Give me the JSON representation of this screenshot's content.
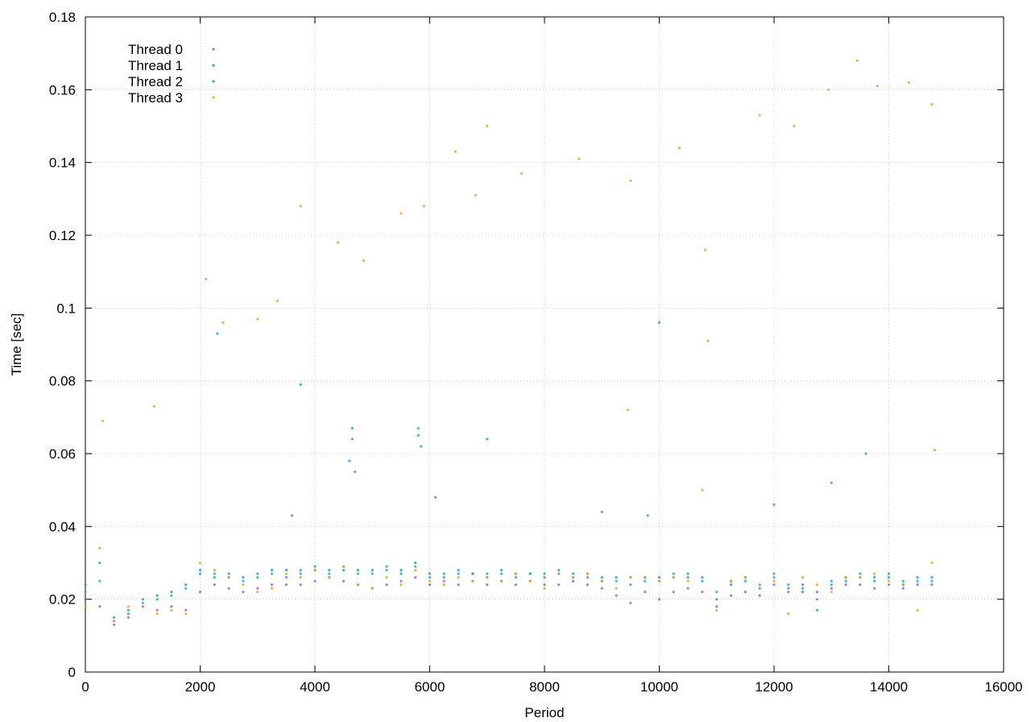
{
  "chart_data": {
    "type": "scatter",
    "title": "",
    "xlabel": "Period",
    "ylabel": "Time [sec]",
    "xlim": [
      0,
      16000
    ],
    "ylim": [
      0,
      0.18
    ],
    "xticks": [
      0,
      2000,
      4000,
      6000,
      8000,
      10000,
      12000,
      14000,
      16000
    ],
    "yticks": [
      0,
      0.02,
      0.04,
      0.06,
      0.08,
      0.1,
      0.12,
      0.14,
      0.16,
      0.18
    ],
    "xtick_labels": [
      "0",
      "2000",
      "4000",
      "6000",
      "8000",
      "10000",
      "12000",
      "14000",
      "16000"
    ],
    "ytick_labels": [
      "0",
      "0.02",
      "0.04",
      "0.06",
      "0.08",
      "0.1",
      "0.12",
      "0.14",
      "0.16",
      "0.18"
    ],
    "grid": true,
    "legend_position": "top-left",
    "series": [
      {
        "name": "Thread 0",
        "color": "#9b59d0",
        "points": [
          [
            0,
            0.02
          ],
          [
            250,
            0.018
          ],
          [
            500,
            0.013
          ],
          [
            750,
            0.015
          ],
          [
            1000,
            0.018
          ],
          [
            1250,
            0.017
          ],
          [
            1500,
            0.018
          ],
          [
            1750,
            0.017
          ],
          [
            2000,
            0.022
          ],
          [
            2250,
            0.024
          ],
          [
            2500,
            0.023
          ],
          [
            2750,
            0.022
          ],
          [
            3000,
            0.023
          ],
          [
            3250,
            0.024
          ],
          [
            3500,
            0.024
          ],
          [
            3750,
            0.024
          ],
          [
            4000,
            0.025
          ],
          [
            4250,
            0.026
          ],
          [
            4500,
            0.025
          ],
          [
            4750,
            0.024
          ],
          [
            5000,
            0.023
          ],
          [
            5250,
            0.024
          ],
          [
            5500,
            0.025
          ],
          [
            5750,
            0.026
          ],
          [
            6000,
            0.024
          ],
          [
            6250,
            0.025
          ],
          [
            6500,
            0.024
          ],
          [
            6750,
            0.025
          ],
          [
            7000,
            0.024
          ],
          [
            7250,
            0.025
          ],
          [
            7500,
            0.024
          ],
          [
            7750,
            0.025
          ],
          [
            8000,
            0.024
          ],
          [
            8250,
            0.024
          ],
          [
            8500,
            0.025
          ],
          [
            8750,
            0.024
          ],
          [
            9000,
            0.023
          ],
          [
            9250,
            0.021
          ],
          [
            9500,
            0.019
          ],
          [
            9750,
            0.022
          ],
          [
            10000,
            0.02
          ],
          [
            10250,
            0.022
          ],
          [
            10500,
            0.023
          ],
          [
            10750,
            0.022
          ],
          [
            11000,
            0.018
          ],
          [
            11250,
            0.021
          ],
          [
            11500,
            0.022
          ],
          [
            11750,
            0.021
          ],
          [
            12000,
            0.024
          ],
          [
            12250,
            0.022
          ],
          [
            12500,
            0.024
          ],
          [
            12750,
            0.022
          ],
          [
            13000,
            0.023
          ],
          [
            13250,
            0.024
          ],
          [
            13500,
            0.024
          ],
          [
            13750,
            0.023
          ],
          [
            14000,
            0.024
          ],
          [
            14250,
            0.023
          ],
          [
            14500,
            0.024
          ],
          [
            14750,
            0.024
          ],
          [
            4650,
            0.064
          ],
          [
            4700,
            0.055
          ],
          [
            6100,
            0.048
          ],
          [
            9000,
            0.044
          ],
          [
            12000,
            0.046
          ],
          [
            3600,
            0.043
          ]
        ]
      },
      {
        "name": "Thread 1",
        "color": "#1f9fd8",
        "points": [
          [
            0,
            0.022
          ],
          [
            250,
            0.025
          ],
          [
            500,
            0.014
          ],
          [
            750,
            0.016
          ],
          [
            1000,
            0.019
          ],
          [
            1250,
            0.02
          ],
          [
            1500,
            0.021
          ],
          [
            1750,
            0.023
          ],
          [
            2000,
            0.027
          ],
          [
            2250,
            0.026
          ],
          [
            2500,
            0.026
          ],
          [
            2750,
            0.025
          ],
          [
            3000,
            0.026
          ],
          [
            3250,
            0.027
          ],
          [
            3500,
            0.026
          ],
          [
            3750,
            0.027
          ],
          [
            4000,
            0.028
          ],
          [
            4250,
            0.027
          ],
          [
            4500,
            0.028
          ],
          [
            4750,
            0.027
          ],
          [
            5000,
            0.027
          ],
          [
            5250,
            0.028
          ],
          [
            5500,
            0.027
          ],
          [
            5750,
            0.029
          ],
          [
            6000,
            0.026
          ],
          [
            6250,
            0.026
          ],
          [
            6500,
            0.027
          ],
          [
            6750,
            0.027
          ],
          [
            7000,
            0.026
          ],
          [
            7250,
            0.027
          ],
          [
            7500,
            0.026
          ],
          [
            7750,
            0.027
          ],
          [
            8000,
            0.026
          ],
          [
            8250,
            0.027
          ],
          [
            8500,
            0.026
          ],
          [
            8750,
            0.026
          ],
          [
            9000,
            0.025
          ],
          [
            9250,
            0.025
          ],
          [
            9500,
            0.024
          ],
          [
            9750,
            0.025
          ],
          [
            10000,
            0.025
          ],
          [
            10250,
            0.026
          ],
          [
            10500,
            0.026
          ],
          [
            10750,
            0.025
          ],
          [
            11000,
            0.022
          ],
          [
            11250,
            0.024
          ],
          [
            11500,
            0.025
          ],
          [
            11750,
            0.024
          ],
          [
            12000,
            0.026
          ],
          [
            12250,
            0.024
          ],
          [
            12500,
            0.023
          ],
          [
            12750,
            0.02
          ],
          [
            13000,
            0.024
          ],
          [
            13250,
            0.025
          ],
          [
            13500,
            0.026
          ],
          [
            13750,
            0.025
          ],
          [
            14000,
            0.026
          ],
          [
            14250,
            0.024
          ],
          [
            14500,
            0.025
          ],
          [
            14750,
            0.025
          ],
          [
            2300,
            0.093
          ],
          [
            5850,
            0.062
          ],
          [
            5800,
            0.067
          ],
          [
            4600,
            0.058
          ],
          [
            9800,
            0.043
          ],
          [
            13000,
            0.052
          ]
        ]
      },
      {
        "name": "Thread 2",
        "color": "#18a3a8",
        "points": [
          [
            0,
            0.024
          ],
          [
            250,
            0.03
          ],
          [
            500,
            0.015
          ],
          [
            750,
            0.017
          ],
          [
            1000,
            0.02
          ],
          [
            1250,
            0.021
          ],
          [
            1500,
            0.022
          ],
          [
            1750,
            0.024
          ],
          [
            2000,
            0.028
          ],
          [
            2250,
            0.027
          ],
          [
            2500,
            0.027
          ],
          [
            2750,
            0.026
          ],
          [
            3000,
            0.027
          ],
          [
            3250,
            0.028
          ],
          [
            3500,
            0.028
          ],
          [
            3750,
            0.028
          ],
          [
            4000,
            0.029
          ],
          [
            4250,
            0.028
          ],
          [
            4500,
            0.029
          ],
          [
            4750,
            0.028
          ],
          [
            5000,
            0.028
          ],
          [
            5250,
            0.029
          ],
          [
            5500,
            0.028
          ],
          [
            5750,
            0.03
          ],
          [
            6000,
            0.027
          ],
          [
            6250,
            0.027
          ],
          [
            6500,
            0.028
          ],
          [
            6750,
            0.027
          ],
          [
            7000,
            0.027
          ],
          [
            7250,
            0.028
          ],
          [
            7500,
            0.027
          ],
          [
            7750,
            0.027
          ],
          [
            8000,
            0.027
          ],
          [
            8250,
            0.028
          ],
          [
            8500,
            0.027
          ],
          [
            8750,
            0.027
          ],
          [
            9000,
            0.026
          ],
          [
            9250,
            0.026
          ],
          [
            9500,
            0.026
          ],
          [
            9750,
            0.026
          ],
          [
            10000,
            0.026
          ],
          [
            10250,
            0.027
          ],
          [
            10500,
            0.027
          ],
          [
            10750,
            0.026
          ],
          [
            11000,
            0.02
          ],
          [
            11250,
            0.025
          ],
          [
            11500,
            0.026
          ],
          [
            11750,
            0.023
          ],
          [
            12000,
            0.027
          ],
          [
            12250,
            0.023
          ],
          [
            12500,
            0.022
          ],
          [
            12750,
            0.017
          ],
          [
            13000,
            0.025
          ],
          [
            13250,
            0.026
          ],
          [
            13500,
            0.027
          ],
          [
            13750,
            0.026
          ],
          [
            14000,
            0.027
          ],
          [
            14250,
            0.025
          ],
          [
            14500,
            0.026
          ],
          [
            14750,
            0.026
          ],
          [
            5800,
            0.065
          ],
          [
            4650,
            0.067
          ],
          [
            3750,
            0.079
          ],
          [
            7000,
            0.064
          ],
          [
            10000,
            0.096
          ],
          [
            13600,
            0.06
          ]
        ]
      },
      {
        "name": "Thread 3",
        "color": "#e0a21a",
        "points": [
          [
            0,
            0.018
          ],
          [
            250,
            0.034
          ],
          [
            500,
            0.014
          ],
          [
            750,
            0.018
          ],
          [
            1000,
            0.018
          ],
          [
            1250,
            0.016
          ],
          [
            1500,
            0.017
          ],
          [
            1750,
            0.016
          ],
          [
            2000,
            0.03
          ],
          [
            2250,
            0.028
          ],
          [
            2500,
            0.026
          ],
          [
            2750,
            0.024
          ],
          [
            3000,
            0.022
          ],
          [
            3250,
            0.023
          ],
          [
            3500,
            0.027
          ],
          [
            3750,
            0.026
          ],
          [
            4000,
            0.028
          ],
          [
            4250,
            0.026
          ],
          [
            4500,
            0.029
          ],
          [
            4750,
            0.024
          ],
          [
            5000,
            0.023
          ],
          [
            5250,
            0.026
          ],
          [
            5500,
            0.024
          ],
          [
            5750,
            0.028
          ],
          [
            6000,
            0.025
          ],
          [
            6250,
            0.024
          ],
          [
            6500,
            0.026
          ],
          [
            6750,
            0.025
          ],
          [
            7000,
            0.026
          ],
          [
            7250,
            0.025
          ],
          [
            7500,
            0.027
          ],
          [
            7750,
            0.025
          ],
          [
            8000,
            0.023
          ],
          [
            8250,
            0.027
          ],
          [
            8500,
            0.026
          ],
          [
            8750,
            0.027
          ],
          [
            9000,
            0.025
          ],
          [
            9250,
            0.023
          ],
          [
            9500,
            0.026
          ],
          [
            9750,
            0.026
          ],
          [
            10000,
            0.025
          ],
          [
            10250,
            0.026
          ],
          [
            10500,
            0.025
          ],
          [
            10750,
            0.05
          ],
          [
            11000,
            0.017
          ],
          [
            11250,
            0.025
          ],
          [
            11500,
            0.026
          ],
          [
            11750,
            0.024
          ],
          [
            12000,
            0.025
          ],
          [
            12250,
            0.016
          ],
          [
            12500,
            0.026
          ],
          [
            12750,
            0.024
          ],
          [
            13000,
            0.022
          ],
          [
            13250,
            0.026
          ],
          [
            13500,
            0.026
          ],
          [
            13750,
            0.027
          ],
          [
            14000,
            0.025
          ],
          [
            14250,
            0.024
          ],
          [
            14500,
            0.017
          ],
          [
            14750,
            0.03
          ],
          [
            300,
            0.069
          ],
          [
            1200,
            0.073
          ],
          [
            2100,
            0.108
          ],
          [
            2400,
            0.096
          ],
          [
            3000,
            0.097
          ],
          [
            3350,
            0.102
          ],
          [
            3750,
            0.128
          ],
          [
            4400,
            0.118
          ],
          [
            4850,
            0.113
          ],
          [
            5500,
            0.126
          ],
          [
            5900,
            0.128
          ],
          [
            6450,
            0.143
          ],
          [
            6800,
            0.131
          ],
          [
            7000,
            0.15
          ],
          [
            7600,
            0.137
          ],
          [
            8600,
            0.141
          ],
          [
            9500,
            0.135
          ],
          [
            10350,
            0.144
          ],
          [
            10800,
            0.116
          ],
          [
            10850,
            0.091
          ],
          [
            11750,
            0.153
          ],
          [
            12350,
            0.15
          ],
          [
            12950,
            0.16
          ],
          [
            13450,
            0.168
          ],
          [
            13800,
            0.161
          ],
          [
            14350,
            0.162
          ],
          [
            14750,
            0.156
          ],
          [
            9450,
            0.072
          ],
          [
            14800,
            0.061
          ]
        ]
      }
    ]
  }
}
